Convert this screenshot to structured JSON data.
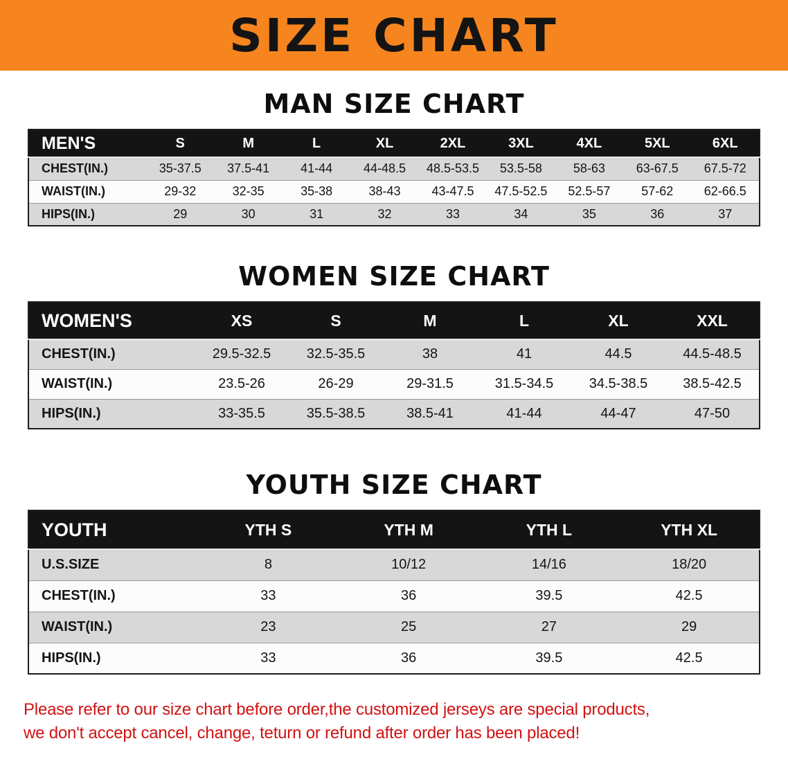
{
  "banner": {
    "title": "SIZE CHART",
    "bg": "#F6851F",
    "text_color": "#141414"
  },
  "sections": [
    {
      "id": "men",
      "heading": "MAN SIZE CHART",
      "label": "MEN'S",
      "columns": [
        "S",
        "M",
        "L",
        "XL",
        "2XL",
        "3XL",
        "4XL",
        "5XL",
        "6XL"
      ],
      "rows": [
        {
          "label": "CHEST(IN.)",
          "values": [
            "35-37.5",
            "37.5-41",
            "41-44",
            "44-48.5",
            "48.5-53.5",
            "53.5-58",
            "58-63",
            "63-67.5",
            "67.5-72"
          ]
        },
        {
          "label": "WAIST(IN.)",
          "values": [
            "29-32",
            "32-35",
            "35-38",
            "38-43",
            "43-47.5",
            "47.5-52.5",
            "52.5-57",
            "57-62",
            "62-66.5"
          ]
        },
        {
          "label": "HIPS(IN.)",
          "values": [
            "29",
            "30",
            "31",
            "32",
            "33",
            "34",
            "35",
            "36",
            "37"
          ]
        }
      ]
    },
    {
      "id": "women",
      "heading": "WOMEN SIZE CHART",
      "label": "WOMEN'S",
      "columns": [
        "XS",
        "S",
        "M",
        "L",
        "XL",
        "XXL"
      ],
      "rows": [
        {
          "label": "CHEST(IN.)",
          "values": [
            "29.5-32.5",
            "32.5-35.5",
            "38",
            "41",
            "44.5",
            "44.5-48.5"
          ]
        },
        {
          "label": "WAIST(IN.)",
          "values": [
            "23.5-26",
            "26-29",
            "29-31.5",
            "31.5-34.5",
            "34.5-38.5",
            "38.5-42.5"
          ]
        },
        {
          "label": "HIPS(IN.)",
          "values": [
            "33-35.5",
            "35.5-38.5",
            "38.5-41",
            "41-44",
            "44-47",
            "47-50"
          ]
        }
      ]
    },
    {
      "id": "youth",
      "heading": "YOUTH SIZE CHART",
      "label": "YOUTH",
      "columns": [
        "YTH S",
        "YTH M",
        "YTH L",
        "YTH XL"
      ],
      "rows": [
        {
          "label": "U.S.SIZE",
          "values": [
            "8",
            "10/12",
            "14/16",
            "18/20"
          ]
        },
        {
          "label": "CHEST(IN.)",
          "values": [
            "33",
            "36",
            "39.5",
            "42.5"
          ]
        },
        {
          "label": "WAIST(IN.)",
          "values": [
            "23",
            "25",
            "27",
            "29"
          ]
        },
        {
          "label": "HIPS(IN.)",
          "values": [
            "33",
            "36",
            "39.5",
            "42.5"
          ]
        }
      ]
    }
  ],
  "disclaimer": {
    "line1": "Please refer to our size chart before order,the customized jerseys are special products,",
    "line2": "we don't accept cancel, change, teturn or refund after order has been placed!",
    "color": "#d11212"
  }
}
